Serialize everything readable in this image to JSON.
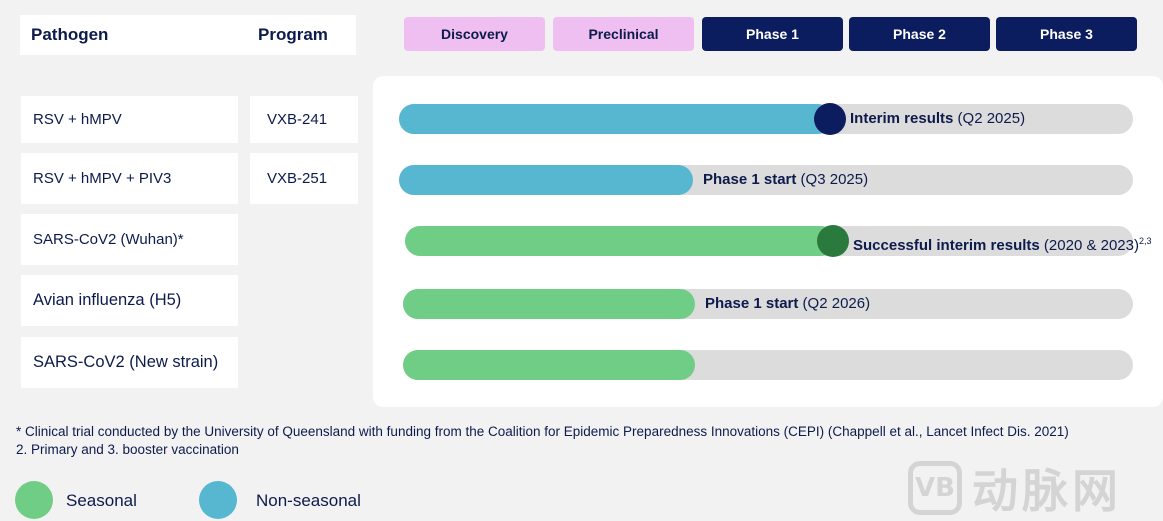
{
  "header": {
    "pathogen_label": "Pathogen",
    "program_label": "Program",
    "phases": [
      "Discovery",
      "Preclinical",
      "Phase 1",
      "Phase 2",
      "Phase 3"
    ]
  },
  "rows": [
    {
      "pathogen": "RSV + hMPV",
      "program": "VXB-241",
      "label_bold": "Interim results",
      "label_rest": " (Q2 2025)",
      "label_sup": "",
      "type": "non-seasonal",
      "progress": 0.59,
      "marker": true
    },
    {
      "pathogen": "RSV + hMPV + PIV3",
      "program": "VXB-251",
      "label_bold": "Phase 1 start",
      "label_rest": " (Q3 2025)",
      "label_sup": "",
      "type": "non-seasonal",
      "progress": 0.4,
      "marker": false
    },
    {
      "pathogen": "SARS-CoV2 (Wuhan)*",
      "program": "",
      "label_bold": "Successful interim results",
      "label_rest": " (2020 & 2023)",
      "label_sup": "2,3",
      "type": "seasonal",
      "progress": 0.59,
      "marker": true
    },
    {
      "pathogen": "Avian influenza (H5)",
      "program": "",
      "label_bold": "Phase 1 start",
      "label_rest": " (Q2 2026)",
      "label_sup": "",
      "type": "seasonal",
      "progress": 0.4,
      "marker": false
    },
    {
      "pathogen": "SARS-CoV2 (New strain)",
      "program": "",
      "label_bold": "",
      "label_rest": "",
      "label_sup": "",
      "type": "seasonal",
      "progress": 0.4,
      "marker": false
    }
  ],
  "footnotes": {
    "line1": "* Clinical trial conducted by the University of Queensland with funding from the Coalition for Epidemic Preparedness Innovations (CEPI) (Chappell et al., Lancet Infect Dis. 2021)",
    "line2": "2. Primary and 3. booster vaccination"
  },
  "legend": {
    "seasonal_label": "Seasonal",
    "non_seasonal_label": "Non-seasonal"
  },
  "colors": {
    "seasonal_fill": "#70cd85",
    "seasonal_marker": "#2a7a3e",
    "non_seasonal_fill": "#57b6d0",
    "non_seasonal_marker": "#0b1d5e"
  },
  "watermark": {
    "logo": "VB",
    "text": "动脉网"
  }
}
